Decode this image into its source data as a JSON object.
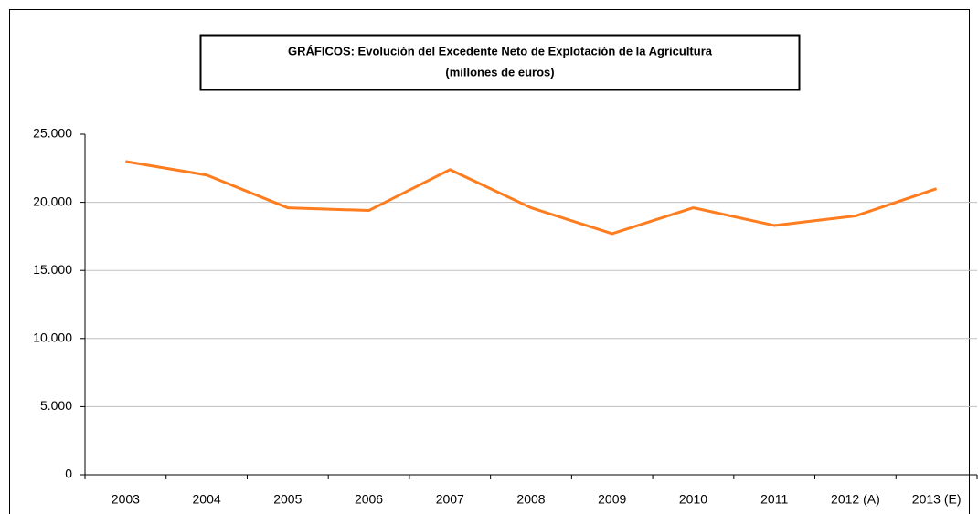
{
  "chart_data": {
    "type": "line",
    "title": "GRÁFICOS: Evolución del Excedente Neto de Explotación de la Agricultura",
    "subtitle": "(millones de euros)",
    "categories": [
      "2003",
      "2004",
      "2005",
      "2006",
      "2007",
      "2008",
      "2009",
      "2010",
      "2011",
      "2012 (A)",
      "2013 (E)"
    ],
    "series": [
      {
        "name": "Excedente Neto de Explotación",
        "color": "#ff7c1f",
        "values": [
          23000,
          22000,
          19600,
          19400,
          22400,
          19600,
          17700,
          19600,
          18300,
          19000,
          21000
        ]
      }
    ],
    "ylim": [
      0,
      25000
    ],
    "yticks": [
      0,
      {
        "value": 5000,
        "label": "5.000"
      },
      {
        "value": 10000,
        "label": "10.000"
      },
      {
        "value": 15000,
        "label": "15.000"
      },
      {
        "value": 20000,
        "label": "20.000"
      },
      {
        "value": 25000,
        "label": "25.000"
      }
    ],
    "grid": true
  }
}
